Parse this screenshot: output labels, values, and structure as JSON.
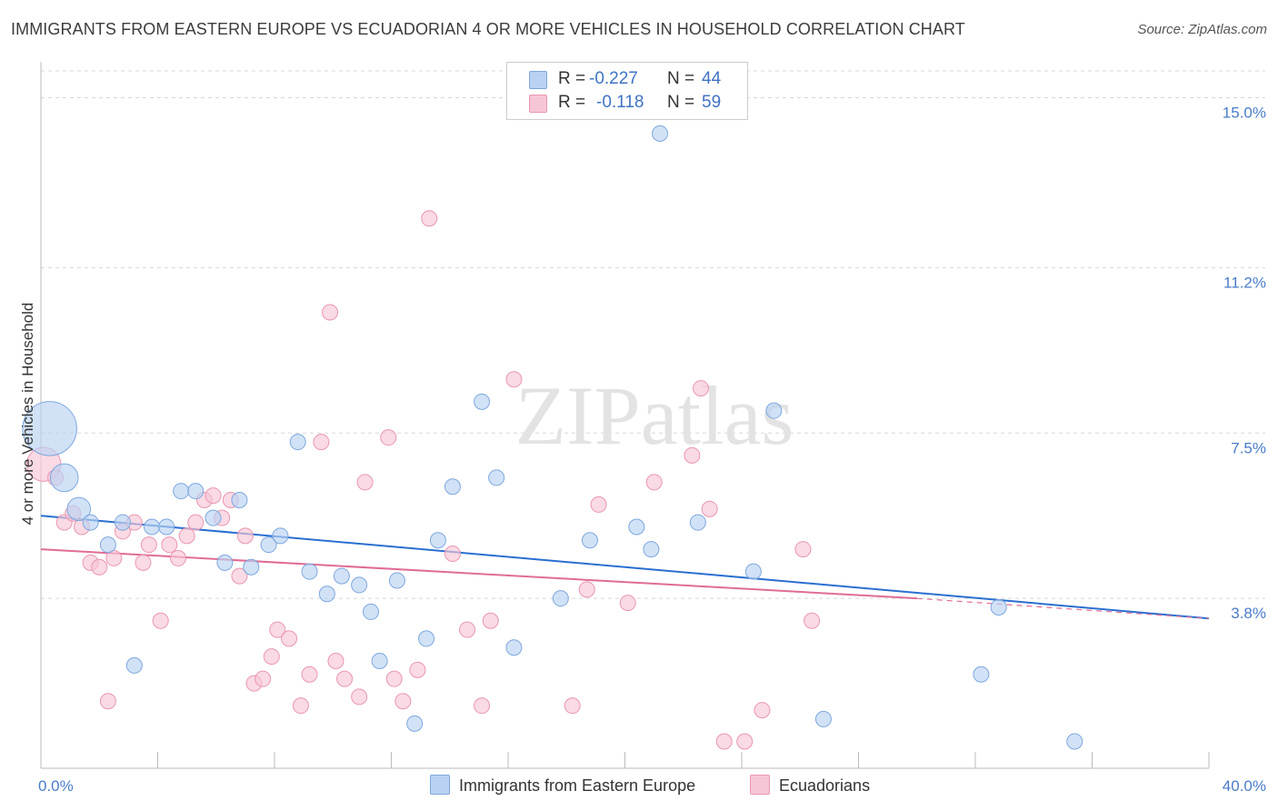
{
  "title": "IMMIGRANTS FROM EASTERN EUROPE VS ECUADORIAN 4 OR MORE VEHICLES IN HOUSEHOLD CORRELATION CHART",
  "source": "Source: ZipAtlas.com",
  "colors": {
    "blue_fill": "#b9d2f3",
    "blue_stroke": "#7ea7dd",
    "blue_line": "#2a6fd1",
    "pink_fill": "#f7c6d6",
    "pink_stroke": "#e996b2",
    "pink_line": "#e06c96",
    "axis_label": "#4a7cc9"
  },
  "legend": {
    "rows": [
      {
        "r_label": "R =",
        "r_value": "-0.227",
        "n_label": "N =",
        "n_value": "44"
      },
      {
        "r_label": "R =",
        "r_value": "-0.118",
        "n_label": "N =",
        "n_value": "59"
      }
    ]
  },
  "bottom_legend": {
    "blue": "Immigrants from Eastern Europe",
    "pink": "Ecuadorians"
  },
  "watermark": "ZIPatlas",
  "chart_data": {
    "type": "scatter",
    "xlabel": "",
    "ylabel": "4 or more Vehicles in Household",
    "xlim": [
      0,
      40
    ],
    "ylim": [
      0,
      15.6
    ],
    "x_tick_labels": [
      {
        "value": 0,
        "label": "0.0%"
      },
      {
        "value": 40,
        "label": "40.0%"
      }
    ],
    "y_tick_labels": [
      {
        "value": 3.8,
        "label": "3.8%"
      },
      {
        "value": 7.5,
        "label": "7.5%"
      },
      {
        "value": 11.2,
        "label": "11.2%"
      },
      {
        "value": 15.0,
        "label": "15.0%"
      }
    ],
    "x_minor_ticks": [
      0,
      4,
      8,
      12,
      16,
      20,
      24,
      28,
      32,
      36,
      40
    ],
    "series": [
      {
        "name": "Immigrants from Eastern Europe",
        "r": -0.227,
        "n": 44,
        "trend": {
          "x": [
            0,
            40
          ],
          "y": [
            5.65,
            3.35
          ]
        },
        "points": [
          {
            "x": 0.3,
            "y": 7.6,
            "s": 3.5
          },
          {
            "x": 0.8,
            "y": 6.5,
            "s": 1.8
          },
          {
            "x": 1.3,
            "y": 5.8,
            "s": 1.5
          },
          {
            "x": 1.7,
            "y": 5.5
          },
          {
            "x": 2.3,
            "y": 5.0
          },
          {
            "x": 2.8,
            "y": 5.5
          },
          {
            "x": 3.2,
            "y": 2.3
          },
          {
            "x": 3.8,
            "y": 5.4
          },
          {
            "x": 4.3,
            "y": 5.4
          },
          {
            "x": 4.8,
            "y": 6.2
          },
          {
            "x": 5.3,
            "y": 6.2
          },
          {
            "x": 5.9,
            "y": 5.6
          },
          {
            "x": 6.3,
            "y": 4.6
          },
          {
            "x": 6.8,
            "y": 6.0
          },
          {
            "x": 7.2,
            "y": 4.5
          },
          {
            "x": 7.8,
            "y": 5.0
          },
          {
            "x": 8.2,
            "y": 5.2
          },
          {
            "x": 8.8,
            "y": 7.3
          },
          {
            "x": 9.2,
            "y": 4.4
          },
          {
            "x": 9.8,
            "y": 3.9
          },
          {
            "x": 10.3,
            "y": 4.3
          },
          {
            "x": 10.9,
            "y": 4.1
          },
          {
            "x": 11.3,
            "y": 3.5
          },
          {
            "x": 11.6,
            "y": 2.4
          },
          {
            "x": 12.2,
            "y": 4.2
          },
          {
            "x": 12.8,
            "y": 1.0
          },
          {
            "x": 13.2,
            "y": 2.9
          },
          {
            "x": 13.6,
            "y": 5.1
          },
          {
            "x": 14.1,
            "y": 6.3
          },
          {
            "x": 15.1,
            "y": 8.2
          },
          {
            "x": 15.6,
            "y": 6.5
          },
          {
            "x": 16.2,
            "y": 2.7
          },
          {
            "x": 17.8,
            "y": 3.8
          },
          {
            "x": 18.8,
            "y": 5.1
          },
          {
            "x": 20.4,
            "y": 5.4
          },
          {
            "x": 20.9,
            "y": 4.9
          },
          {
            "x": 21.2,
            "y": 14.2
          },
          {
            "x": 22.5,
            "y": 5.5
          },
          {
            "x": 24.4,
            "y": 4.4
          },
          {
            "x": 25.1,
            "y": 8.0
          },
          {
            "x": 26.8,
            "y": 1.1
          },
          {
            "x": 32.2,
            "y": 2.1
          },
          {
            "x": 32.8,
            "y": 3.6
          },
          {
            "x": 35.4,
            "y": 0.6
          }
        ]
      },
      {
        "name": "Ecuadorians",
        "r": -0.118,
        "n": 59,
        "trend": {
          "x": [
            0,
            30
          ],
          "y": [
            4.9,
            3.8
          ]
        },
        "trend_dashed": {
          "x": [
            30,
            40
          ],
          "y": [
            3.8,
            3.35
          ]
        },
        "points": [
          {
            "x": 0.1,
            "y": 6.8,
            "s": 2.2
          },
          {
            "x": 0.5,
            "y": 6.5
          },
          {
            "x": 0.8,
            "y": 5.5
          },
          {
            "x": 1.1,
            "y": 5.7
          },
          {
            "x": 1.4,
            "y": 5.4
          },
          {
            "x": 1.7,
            "y": 4.6
          },
          {
            "x": 2.0,
            "y": 4.5
          },
          {
            "x": 2.3,
            "y": 1.5
          },
          {
            "x": 2.5,
            "y": 4.7
          },
          {
            "x": 2.8,
            "y": 5.3
          },
          {
            "x": 3.2,
            "y": 5.5
          },
          {
            "x": 3.5,
            "y": 4.6
          },
          {
            "x": 3.7,
            "y": 5.0
          },
          {
            "x": 4.1,
            "y": 3.3
          },
          {
            "x": 4.4,
            "y": 5.0
          },
          {
            "x": 4.7,
            "y": 4.7
          },
          {
            "x": 5.0,
            "y": 5.2
          },
          {
            "x": 5.3,
            "y": 5.5
          },
          {
            "x": 5.6,
            "y": 6.0
          },
          {
            "x": 5.9,
            "y": 6.1
          },
          {
            "x": 6.2,
            "y": 5.6
          },
          {
            "x": 6.5,
            "y": 6.0
          },
          {
            "x": 6.8,
            "y": 4.3
          },
          {
            "x": 7.0,
            "y": 5.2
          },
          {
            "x": 7.3,
            "y": 1.9
          },
          {
            "x": 7.6,
            "y": 2.0
          },
          {
            "x": 7.9,
            "y": 2.5
          },
          {
            "x": 8.1,
            "y": 3.1
          },
          {
            "x": 8.5,
            "y": 2.9
          },
          {
            "x": 8.9,
            "y": 1.4
          },
          {
            "x": 9.2,
            "y": 2.1
          },
          {
            "x": 9.6,
            "y": 7.3
          },
          {
            "x": 9.9,
            "y": 10.2
          },
          {
            "x": 10.1,
            "y": 2.4
          },
          {
            "x": 10.4,
            "y": 2.0
          },
          {
            "x": 10.9,
            "y": 1.6
          },
          {
            "x": 11.1,
            "y": 6.4
          },
          {
            "x": 11.9,
            "y": 7.4
          },
          {
            "x": 12.1,
            "y": 2.0
          },
          {
            "x": 12.4,
            "y": 1.5
          },
          {
            "x": 12.9,
            "y": 2.2
          },
          {
            "x": 13.3,
            "y": 12.3
          },
          {
            "x": 14.1,
            "y": 4.8
          },
          {
            "x": 14.6,
            "y": 3.1
          },
          {
            "x": 15.1,
            "y": 1.4
          },
          {
            "x": 15.4,
            "y": 3.3
          },
          {
            "x": 16.2,
            "y": 8.7
          },
          {
            "x": 18.2,
            "y": 1.4
          },
          {
            "x": 18.7,
            "y": 4.0
          },
          {
            "x": 19.1,
            "y": 5.9
          },
          {
            "x": 20.1,
            "y": 3.7
          },
          {
            "x": 21.0,
            "y": 6.4
          },
          {
            "x": 22.3,
            "y": 7.0
          },
          {
            "x": 22.6,
            "y": 8.5
          },
          {
            "x": 22.9,
            "y": 5.8
          },
          {
            "x": 23.4,
            "y": 0.6
          },
          {
            "x": 24.1,
            "y": 0.6
          },
          {
            "x": 24.7,
            "y": 1.3
          },
          {
            "x": 26.1,
            "y": 4.9
          },
          {
            "x": 26.4,
            "y": 3.3
          }
        ]
      }
    ]
  }
}
